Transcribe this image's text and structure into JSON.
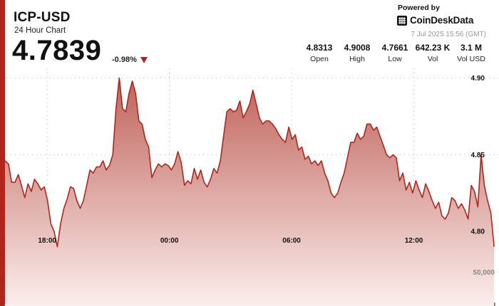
{
  "header": {
    "pair": "ICP-USD",
    "subtitle": "24 Hour Chart",
    "price": "4.7839",
    "change": "-0.98%",
    "powered_by": "Powered by",
    "brand": "CoinDeskData",
    "timestamp": "7 Jul 2025 15:56 (GMT)"
  },
  "stats": [
    {
      "value": "4.8313",
      "label": "Open"
    },
    {
      "value": "4.9008",
      "label": "High"
    },
    {
      "value": "4.7661",
      "label": "Low"
    },
    {
      "value": "642.23 K",
      "label": "Vol"
    },
    {
      "value": "3.1 M",
      "label": "Vol USD"
    }
  ],
  "colors": {
    "accent": "#b0261c",
    "line": "#b0261c",
    "fill_top": "#c0635a",
    "fill_bottom": "#fbeeed",
    "volume_bar": "#666666",
    "grid": "#bbbbbb"
  },
  "chart_data": {
    "type": "line",
    "x_hours": [
      15.93,
      16.1,
      16.26,
      16.42,
      16.58,
      16.74,
      16.9,
      17.06,
      17.22,
      17.38,
      17.54,
      17.7,
      17.86,
      18.02,
      18.18,
      18.34,
      18.5,
      18.66,
      18.82,
      18.98,
      19.14,
      19.3,
      19.46,
      19.62,
      19.78,
      19.94,
      20.1,
      20.26,
      20.42,
      20.58,
      20.74,
      20.9,
      21.06,
      21.22,
      21.38,
      21.54,
      21.7,
      21.86,
      22.02,
      22.18,
      22.34,
      22.5,
      22.66,
      22.82,
      22.98,
      23.14,
      23.3,
      23.46,
      23.62,
      23.78,
      23.94,
      24.1,
      24.26,
      24.42,
      24.58,
      24.74,
      24.9,
      25.06,
      25.22,
      25.38,
      25.54,
      25.7,
      25.86,
      26.02,
      26.18,
      26.34,
      26.5,
      26.66,
      26.82,
      26.98,
      27.14,
      27.3,
      27.46,
      27.62,
      27.78,
      27.94,
      28.1,
      28.26,
      28.42,
      28.58,
      28.74,
      28.9,
      29.06,
      29.22,
      29.38,
      29.54,
      29.7,
      29.86,
      30.02,
      30.18,
      30.34,
      30.5,
      30.66,
      30.82,
      30.98,
      31.14,
      31.3,
      31.46,
      31.62,
      31.78,
      31.94,
      32.1,
      32.26,
      32.42,
      32.58,
      32.74,
      32.9,
      33.06,
      33.22,
      33.38,
      33.54,
      33.7,
      33.86,
      34.02,
      34.18,
      34.34,
      34.5,
      34.66,
      34.82,
      34.98,
      35.14,
      35.3,
      35.46,
      35.62,
      35.78,
      35.94,
      36.1,
      36.26,
      36.42,
      36.58,
      36.74,
      36.9,
      37.06,
      37.22,
      37.38,
      37.54,
      37.7,
      37.86,
      38.02,
      38.18,
      38.34,
      38.5,
      38.66,
      38.82,
      38.98,
      39.14,
      39.3,
      39.46,
      39.62,
      39.78,
      39.94
    ],
    "price": [
      4.846,
      4.844,
      4.832,
      4.832,
      4.837,
      4.83,
      4.822,
      4.831,
      4.826,
      4.834,
      4.831,
      4.827,
      4.829,
      4.82,
      4.805,
      4.8,
      4.79,
      4.805,
      4.815,
      4.821,
      4.829,
      4.828,
      4.82,
      4.815,
      4.82,
      4.83,
      4.84,
      4.838,
      4.842,
      4.842,
      4.846,
      4.84,
      4.843,
      4.85,
      4.88,
      4.9,
      4.88,
      4.878,
      4.89,
      4.898,
      4.89,
      4.872,
      4.87,
      4.86,
      4.855,
      4.835,
      4.84,
      4.844,
      4.842,
      4.844,
      4.843,
      4.84,
      4.844,
      4.852,
      4.845,
      4.83,
      4.833,
      4.831,
      4.841,
      4.834,
      4.84,
      4.832,
      4.829,
      4.834,
      4.841,
      4.838,
      4.846,
      4.862,
      4.878,
      4.88,
      4.878,
      4.879,
      4.885,
      4.874,
      4.878,
      4.883,
      4.892,
      4.883,
      4.874,
      4.87,
      4.872,
      4.872,
      4.87,
      4.867,
      4.863,
      4.86,
      4.858,
      4.868,
      4.86,
      4.863,
      4.853,
      4.855,
      4.847,
      4.849,
      4.844,
      4.846,
      4.843,
      4.846,
      4.838,
      4.833,
      4.825,
      4.822,
      4.825,
      4.832,
      4.838,
      4.848,
      4.858,
      4.858,
      4.864,
      4.86,
      4.862,
      4.87,
      4.87,
      4.866,
      4.868,
      4.862,
      4.856,
      4.85,
      4.848,
      4.85,
      4.848,
      4.833,
      4.838,
      4.827,
      4.832,
      4.825,
      4.833,
      4.827,
      4.822,
      4.831,
      4.826,
      4.82,
      4.815,
      4.819,
      4.81,
      4.808,
      4.812,
      4.822,
      4.82,
      4.815,
      4.818,
      4.814,
      4.808,
      4.83,
      4.826,
      4.816,
      4.85,
      4.83,
      4.82,
      4.812,
      4.79
    ],
    "y_ticks": [
      4.9,
      4.85,
      4.8
    ],
    "ylim": [
      4.756,
      4.9128
    ],
    "x_ticks": [
      {
        "hour": 18,
        "label": "18:00"
      },
      {
        "hour": 24,
        "label": "00:00"
      },
      {
        "hour": 30,
        "label": "06:00"
      },
      {
        "hour": 36,
        "label": "12:00"
      }
    ],
    "xlim": [
      15.93,
      40.18
    ],
    "volume_max_label": "50,000",
    "volume": [
      6,
      2,
      3,
      4,
      2,
      12,
      5,
      3,
      2,
      4,
      3,
      2,
      4,
      2,
      3,
      5,
      2,
      6,
      30,
      4,
      3,
      6,
      2,
      28,
      12,
      5,
      2,
      4,
      2,
      8,
      6,
      3,
      4,
      7,
      9,
      5,
      15,
      3,
      2,
      4,
      2,
      3,
      5,
      2,
      12,
      6,
      3,
      8,
      4,
      2,
      3,
      9,
      6,
      3,
      42,
      5,
      8,
      22,
      7,
      20,
      30,
      24,
      8,
      3,
      2,
      5,
      3,
      6,
      2,
      4,
      3,
      2,
      5,
      8,
      3,
      2,
      4,
      6,
      3,
      7,
      18,
      5,
      12,
      28,
      9,
      6,
      14,
      5,
      18,
      10,
      6,
      15,
      4,
      3,
      6,
      5,
      2,
      4,
      3,
      8,
      14,
      6,
      3,
      12,
      26,
      5,
      9,
      3,
      7,
      28,
      6,
      4,
      12,
      60,
      18,
      6,
      12,
      3,
      54,
      32,
      14,
      6,
      4,
      3,
      3,
      12,
      4,
      10,
      6,
      4,
      8,
      4,
      2,
      3,
      5,
      3,
      12,
      6,
      4,
      180,
      40,
      10,
      26,
      8,
      14,
      8,
      12,
      34,
      20,
      5,
      10
    ],
    "volume_max": 50000
  }
}
